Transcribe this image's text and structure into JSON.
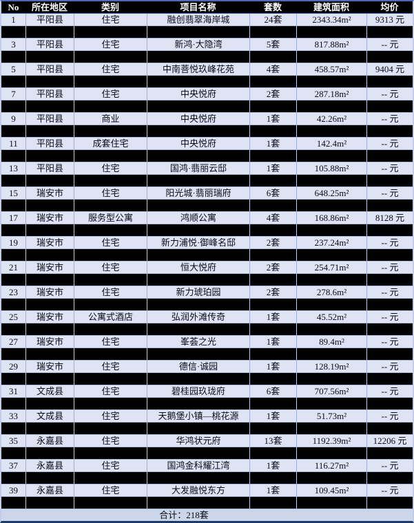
{
  "table": {
    "columns": [
      {
        "key": "no",
        "label": "No"
      },
      {
        "key": "region",
        "label": "所在地区"
      },
      {
        "key": "category",
        "label": "类别"
      },
      {
        "key": "project",
        "label": "项目名称"
      },
      {
        "key": "units",
        "label": "套数"
      },
      {
        "key": "area",
        "label": "建筑面积"
      },
      {
        "key": "price",
        "label": "均价"
      }
    ],
    "rows": [
      {
        "no": "1",
        "region": "平阳县",
        "category": "住宅",
        "project": "融创翡翠海岸城",
        "units": "24套",
        "area": "2343.34m²",
        "price": "9313 元"
      },
      {
        "no": "3",
        "region": "平阳县",
        "category": "住宅",
        "project": "新鸿·大隐湾",
        "units": "5套",
        "area": "817.88m²",
        "price": "-- 元"
      },
      {
        "no": "5",
        "region": "平阳县",
        "category": "住宅",
        "project": "中南菩悦玖峰花苑",
        "units": "4套",
        "area": "458.57m²",
        "price": "9404 元"
      },
      {
        "no": "7",
        "region": "平阳县",
        "category": "住宅",
        "project": "中央悦府",
        "units": "2套",
        "area": "287.18m²",
        "price": "-- 元"
      },
      {
        "no": "9",
        "region": "平阳县",
        "category": "商业",
        "project": "中央悦府",
        "units": "1套",
        "area": "42.26m²",
        "price": "-- 元"
      },
      {
        "no": "11",
        "region": "平阳县",
        "category": "成套住宅",
        "project": "中央悦府",
        "units": "1套",
        "area": "142.4m²",
        "price": "-- 元"
      },
      {
        "no": "13",
        "region": "平阳县",
        "category": "住宅",
        "project": "国鸿·翡丽云邸",
        "units": "1套",
        "area": "105.88m²",
        "price": "-- 元"
      },
      {
        "no": "15",
        "region": "瑞安市",
        "category": "住宅",
        "project": "阳光城·翡丽瑞府",
        "units": "6套",
        "area": "648.25m²",
        "price": "-- 元"
      },
      {
        "no": "17",
        "region": "瑞安市",
        "category": "服务型公寓",
        "project": "鸿顺公寓",
        "units": "4套",
        "area": "168.86m²",
        "price": "8128 元"
      },
      {
        "no": "19",
        "region": "瑞安市",
        "category": "住宅",
        "project": "新力浦悦·御峰名邸",
        "units": "2套",
        "area": "237.24m²",
        "price": "-- 元"
      },
      {
        "no": "21",
        "region": "瑞安市",
        "category": "住宅",
        "project": "恒大悦府",
        "units": "2套",
        "area": "254.71m²",
        "price": "-- 元"
      },
      {
        "no": "23",
        "region": "瑞安市",
        "category": "住宅",
        "project": "新力琥珀园",
        "units": "2套",
        "area": "278.6m²",
        "price": "-- 元"
      },
      {
        "no": "25",
        "region": "瑞安市",
        "category": "公寓式酒店",
        "project": "弘润外滩传奇",
        "units": "1套",
        "area": "45.52m²",
        "price": "-- 元"
      },
      {
        "no": "27",
        "region": "瑞安市",
        "category": "住宅",
        "project": "峯荟之光",
        "units": "1套",
        "area": "89.4m²",
        "price": "-- 元"
      },
      {
        "no": "29",
        "region": "瑞安市",
        "category": "住宅",
        "project": "德信·诚园",
        "units": "1套",
        "area": "128.19m²",
        "price": "-- 元"
      },
      {
        "no": "31",
        "region": "文成县",
        "category": "住宅",
        "project": "碧桂园玖珑府",
        "units": "6套",
        "area": "707.56m²",
        "price": "-- 元"
      },
      {
        "no": "33",
        "region": "文成县",
        "category": "住宅",
        "project": "天鹅堡小镇—桃花源",
        "units": "1套",
        "area": "51.73m²",
        "price": "-- 元"
      },
      {
        "no": "35",
        "region": "永嘉县",
        "category": "住宅",
        "project": "华鸿状元府",
        "units": "13套",
        "area": "1192.39m²",
        "price": "12206 元"
      },
      {
        "no": "37",
        "region": "永嘉县",
        "category": "住宅",
        "project": "国鸿金科耀江湾",
        "units": "1套",
        "area": "116.27m²",
        "price": "-- 元"
      },
      {
        "no": "39",
        "region": "永嘉县",
        "category": "住宅",
        "project": "大发融悦东方",
        "units": "1套",
        "area": "109.45m²",
        "price": "-- 元"
      }
    ],
    "footer": {
      "total_label": "合计：218套"
    }
  },
  "colors": {
    "header_bg": "#000000",
    "header_text": "#ffffff",
    "row_bg": "#dfe4f5",
    "redacted_bg": "#000000",
    "footer_bg": "#ccd6ea",
    "grid_line": "#a9b7dd",
    "top_border": "#4a69bd",
    "bottom_border": "#1b3a6b",
    "text": "#0a0a14"
  }
}
